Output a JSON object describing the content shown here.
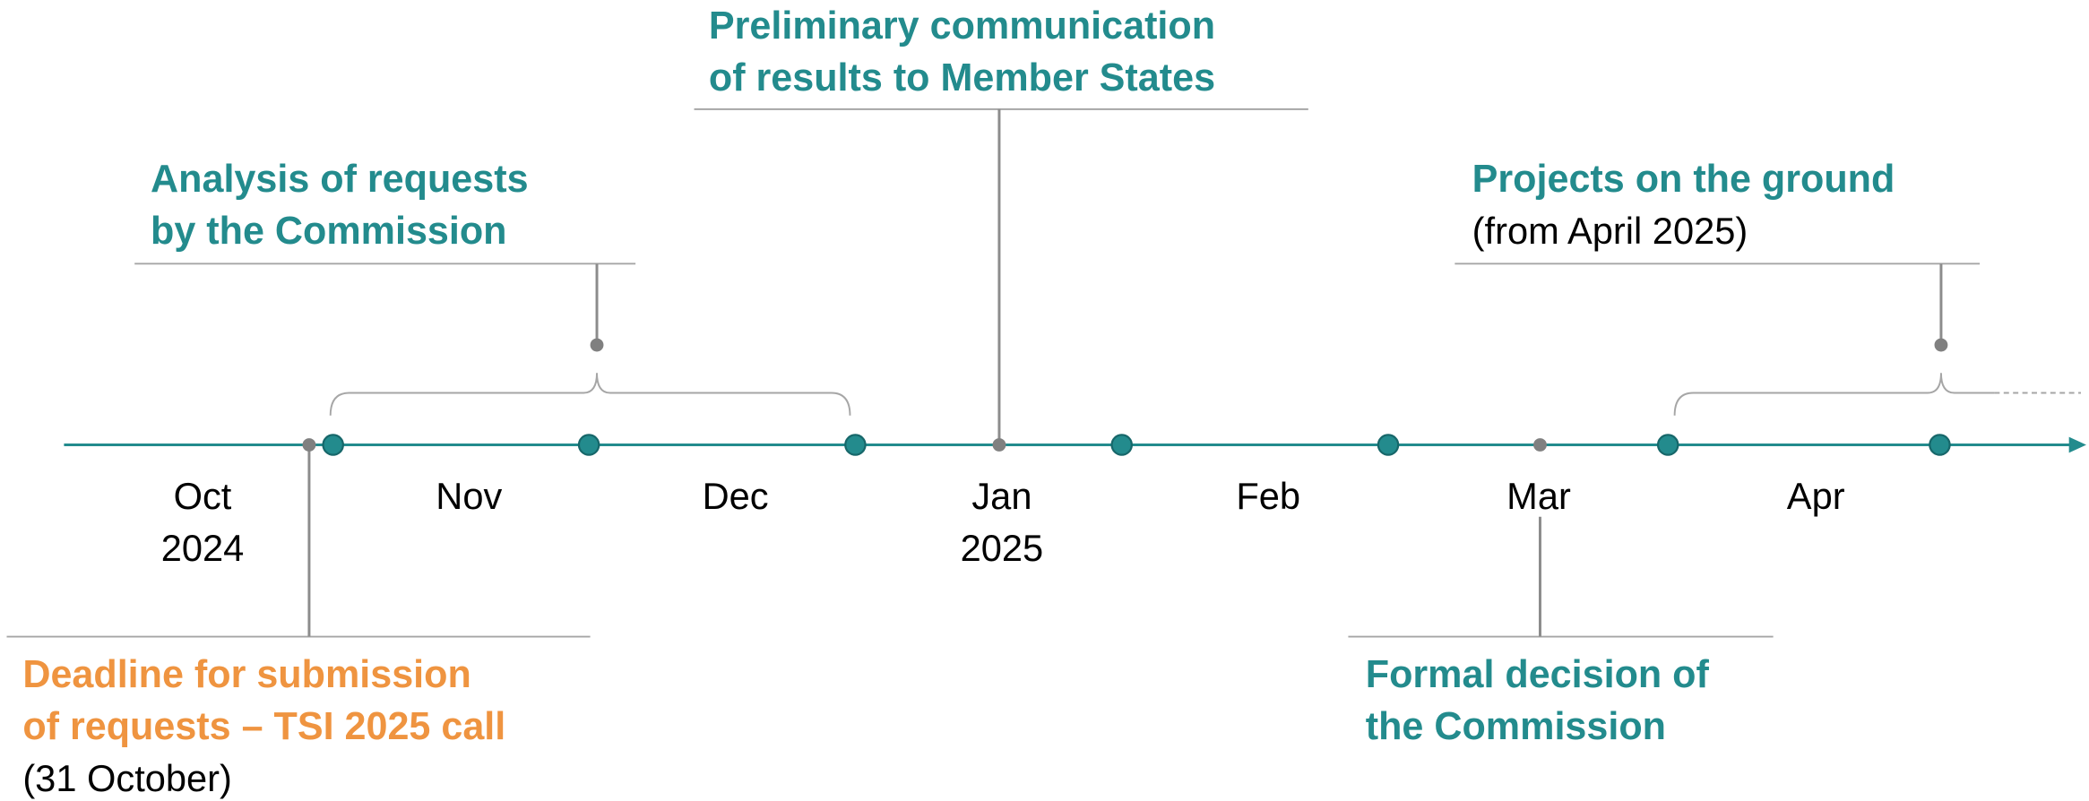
{
  "months": [
    {
      "label": "Oct",
      "year": "2024"
    },
    {
      "label": "Nov"
    },
    {
      "label": "Dec"
    },
    {
      "label": "Jan",
      "year": "2025"
    },
    {
      "label": "Feb"
    },
    {
      "label": "Mar"
    },
    {
      "label": "Apr"
    }
  ],
  "events": [
    {
      "title": [
        "Preliminary communication",
        "of results to Member States"
      ]
    },
    {
      "title": [
        "Analysis of requests",
        "by the Commission"
      ]
    },
    {
      "title": [
        "Projects on the ground"
      ],
      "note": "(from April 2025)"
    },
    {
      "title": [
        "Deadline for submission",
        "of requests – TSI 2025 call"
      ],
      "note": "(31 October)"
    },
    {
      "title": [
        "Formal decision of",
        "the Commission"
      ]
    }
  ]
}
